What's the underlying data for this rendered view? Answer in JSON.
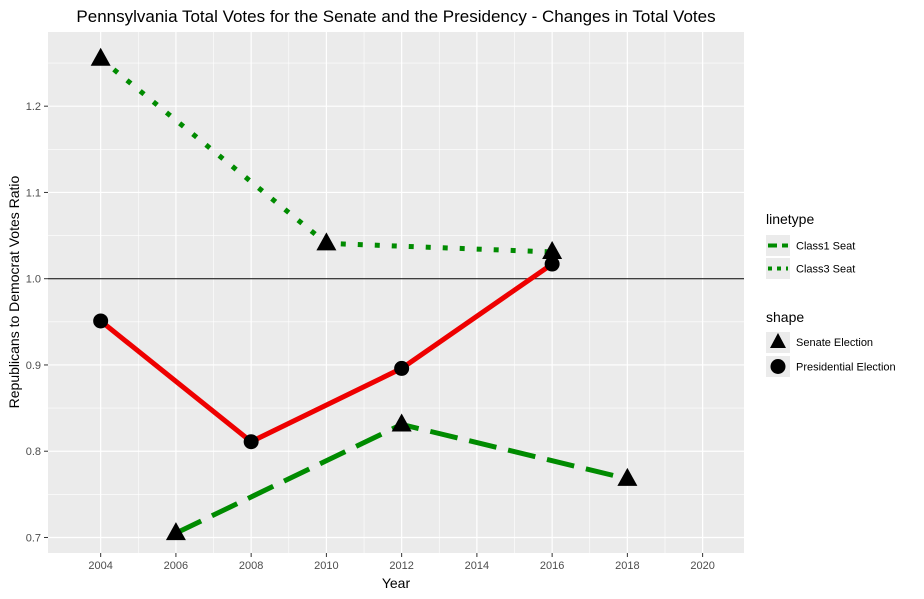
{
  "chart_data": {
    "type": "line",
    "title": "Pennsylvania Total Votes for the Senate and the Presidency - Changes in Total Votes",
    "xlabel": "Year",
    "ylabel": "Republicans to Democrat Votes Ratio",
    "xlim": [
      2002.6,
      2021.1
    ],
    "ylim": [
      0.682,
      1.286
    ],
    "x_ticks": [
      2004,
      2006,
      2008,
      2010,
      2012,
      2014,
      2016,
      2018,
      2020
    ],
    "y_ticks": [
      0.7,
      0.8,
      0.9,
      1.0,
      1.1,
      1.2
    ],
    "x_tick_labels": [
      "2004",
      "2006",
      "2008",
      "2010",
      "2012",
      "2014",
      "2016",
      "2018",
      "2020"
    ],
    "y_tick_labels": [
      "0.7",
      "0.8",
      "0.9",
      "1.0",
      "1.1",
      "1.2"
    ],
    "reference_line": {
      "y": 1.0,
      "color": "#000000"
    },
    "grid": true,
    "panel_background": "#ebebeb",
    "series": [
      {
        "name": "Class1 Seat",
        "legend_group": "linetype",
        "shape": "Senate Election",
        "color": "#008b00",
        "linetype": "dashed",
        "x": [
          2006,
          2012,
          2018
        ],
        "y": [
          0.705,
          0.831,
          0.768
        ]
      },
      {
        "name": "Class3 Seat",
        "legend_group": "linetype",
        "shape": "Senate Election",
        "color": "#008b00",
        "linetype": "dotted",
        "x": [
          2004,
          2010,
          2016
        ],
        "y": [
          1.255,
          1.041,
          1.031
        ]
      },
      {
        "legend_group": "none",
        "shape": "Presidential Election",
        "color": "#ee0000",
        "linetype": "solid",
        "x": [
          2004,
          2008,
          2012,
          2016
        ],
        "y": [
          0.951,
          0.811,
          0.896,
          1.017
        ]
      }
    ],
    "legends": [
      {
        "title": "linetype",
        "position": "right",
        "entries": [
          {
            "label": "Class1 Seat",
            "linetype": "dashed",
            "color": "#008b00"
          },
          {
            "label": "Class3 Seat",
            "linetype": "dotted",
            "color": "#008b00"
          }
        ]
      },
      {
        "title": "shape",
        "position": "right",
        "entries": [
          {
            "label": "Senate Election",
            "shape": "triangle"
          },
          {
            "label": "Presidential Election",
            "shape": "circle"
          }
        ]
      }
    ]
  }
}
